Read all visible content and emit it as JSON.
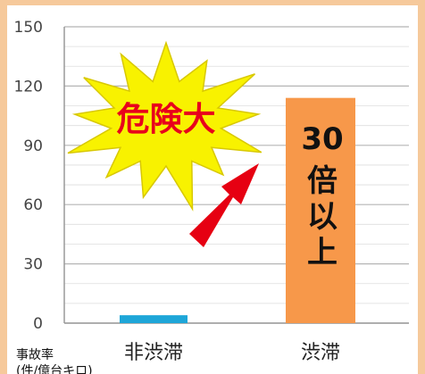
{
  "chart_data": {
    "type": "bar",
    "categories": [
      "非渋滞",
      "渋滞"
    ],
    "values": [
      4,
      114
    ],
    "ylim": [
      0,
      150
    ],
    "yticks": [
      0,
      30,
      60,
      90,
      120,
      150
    ],
    "grid": true,
    "colors": {
      "非渋滞": "#1ea6d8",
      "渋滞": "#f7984a"
    },
    "ylabel": "事故率",
    "ylabel_sub": "(件/億台キロ)",
    "annotations": {
      "burst": "危険大",
      "bar_label": "30\n倍\n以\n上",
      "arrow": "red-arrow-icon"
    }
  }
}
